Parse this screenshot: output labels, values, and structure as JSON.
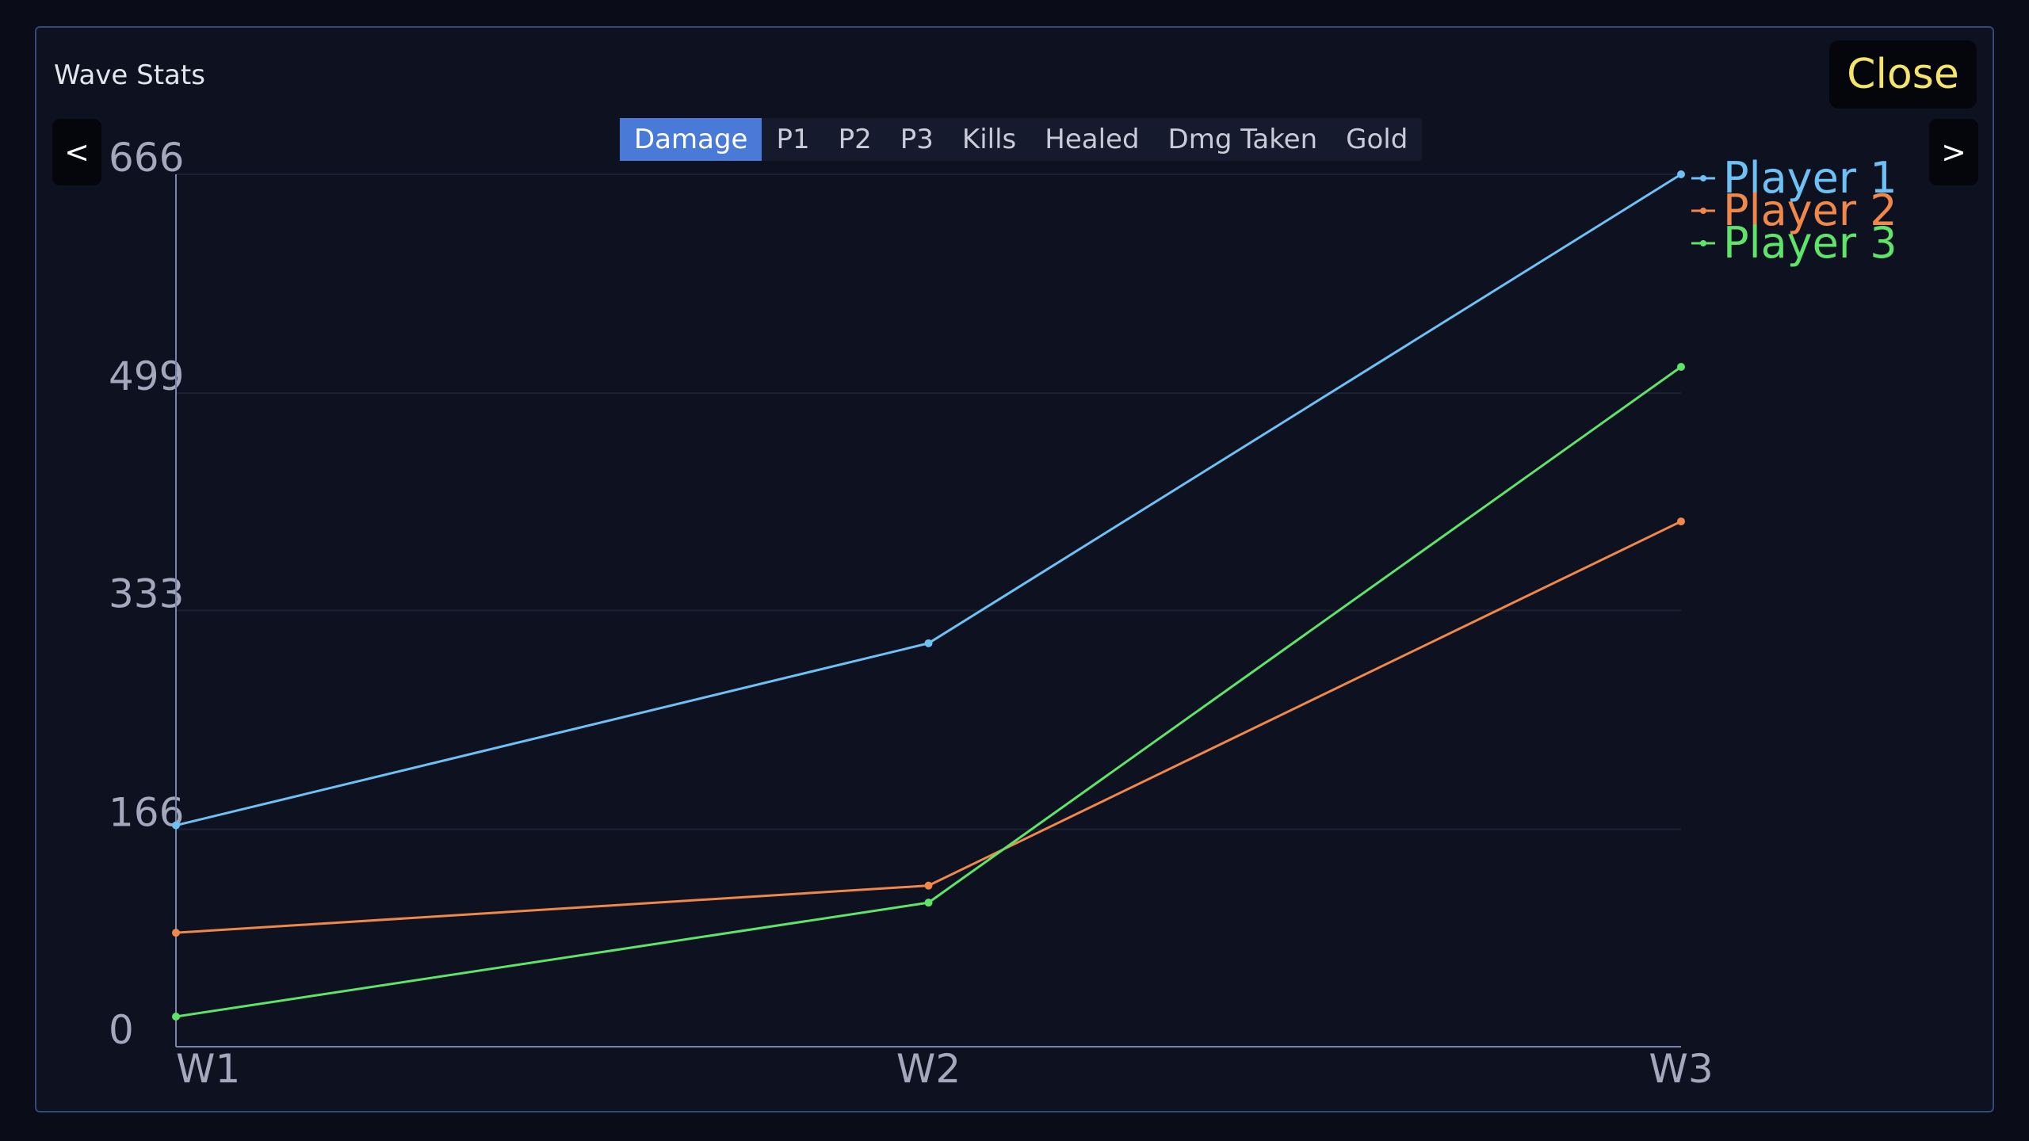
{
  "header": {
    "title": "Wave Stats",
    "close": "Close",
    "prev": "<",
    "next": ">"
  },
  "tabs": {
    "items": [
      "Damage",
      "P1",
      "P2",
      "P3",
      "Kills",
      "Healed",
      "Dmg Taken",
      "Gold"
    ],
    "active": 0
  },
  "chart_data": {
    "type": "line",
    "categories": [
      "W1",
      "W2",
      "W3"
    ],
    "series": [
      {
        "name": "Player 1",
        "color": "#6ec1f5",
        "values": [
          169,
          308,
          666
        ]
      },
      {
        "name": "Player 2",
        "color": "#f0884a",
        "values": [
          87,
          123,
          401
        ]
      },
      {
        "name": "Player 3",
        "color": "#5fe46a",
        "values": [
          23,
          110,
          519
        ]
      }
    ],
    "ylim": [
      0,
      666
    ],
    "yticks": [
      0,
      166,
      333,
      499,
      666
    ],
    "grid": true,
    "legend": "top-right"
  }
}
